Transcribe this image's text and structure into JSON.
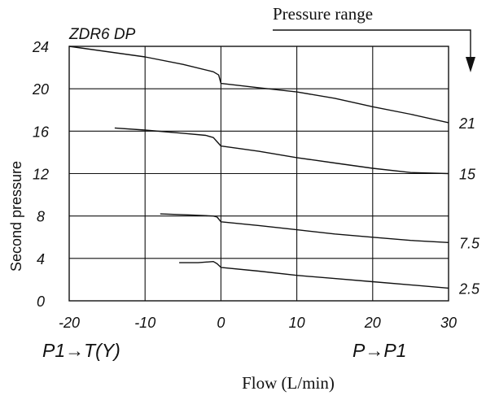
{
  "chart_data": {
    "type": "line",
    "title": "ZDR6 DP",
    "ylabel": "Second pressure",
    "xlabel": "Flow (L/min)",
    "x_direction_left": "P1→T(Y)",
    "x_direction_right": "P→P1",
    "legend_title": "Pressure range",
    "xlim": [
      -20,
      30
    ],
    "ylim": [
      0,
      24
    ],
    "x_ticks": [
      "-20",
      "-10",
      "0",
      "10",
      "20",
      "30"
    ],
    "y_ticks": [
      "0",
      "4",
      "8",
      "12",
      "16",
      "20",
      "24"
    ],
    "grid": true,
    "series": [
      {
        "name": "21",
        "points": [
          [
            -20,
            24.0
          ],
          [
            -10,
            23.0
          ],
          [
            -5,
            22.3
          ],
          [
            -1,
            21.6
          ],
          [
            -0.3,
            21.3
          ],
          [
            0,
            20.5
          ],
          [
            5,
            20.1
          ],
          [
            10,
            19.7
          ],
          [
            15,
            19.1
          ],
          [
            20,
            18.3
          ],
          [
            25,
            17.6
          ],
          [
            30,
            16.8
          ]
        ]
      },
      {
        "name": "15",
        "points": [
          [
            -14,
            16.3
          ],
          [
            -10,
            16.1
          ],
          [
            -5,
            15.8
          ],
          [
            -2,
            15.6
          ],
          [
            -1,
            15.4
          ],
          [
            -0.5,
            15.0
          ],
          [
            0,
            14.6
          ],
          [
            5,
            14.1
          ],
          [
            10,
            13.5
          ],
          [
            15,
            13.0
          ],
          [
            20,
            12.5
          ],
          [
            25,
            12.1
          ],
          [
            30,
            12.0
          ]
        ]
      },
      {
        "name": "7.5",
        "points": [
          [
            -8,
            8.2
          ],
          [
            -4,
            8.1
          ],
          [
            -1,
            8.0
          ],
          [
            -0.5,
            7.9
          ],
          [
            0,
            7.45
          ],
          [
            5,
            7.1
          ],
          [
            10,
            6.7
          ],
          [
            15,
            6.3
          ],
          [
            20,
            6.0
          ],
          [
            25,
            5.7
          ],
          [
            30,
            5.5
          ]
        ]
      },
      {
        "name": "2.5",
        "points": [
          [
            -5.5,
            3.6
          ],
          [
            -3,
            3.6
          ],
          [
            -1,
            3.7
          ],
          [
            -0.5,
            3.5
          ],
          [
            0,
            3.15
          ],
          [
            5,
            2.8
          ],
          [
            10,
            2.4
          ],
          [
            15,
            2.1
          ],
          [
            20,
            1.8
          ],
          [
            25,
            1.5
          ],
          [
            30,
            1.2
          ]
        ]
      }
    ]
  }
}
